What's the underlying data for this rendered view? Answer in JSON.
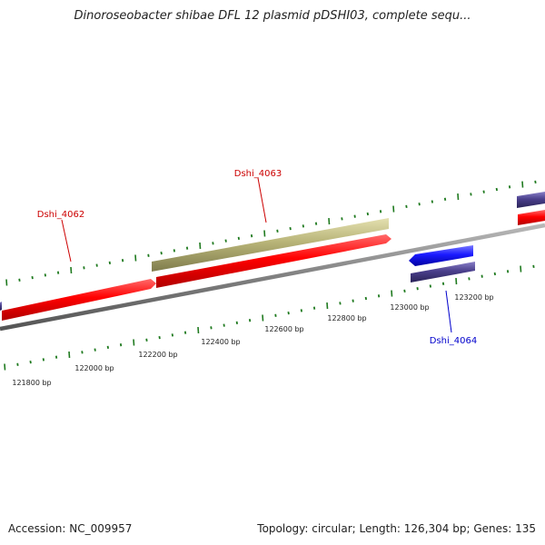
{
  "title": "Dinoroseobacter shibae DFL 12 plasmid pDSHI03, complete sequ...",
  "footer": {
    "accession": "Accession: NC_009957",
    "topology": "Topology: circular; Length: 126,304 bp; Genes: 135"
  },
  "ticks": [
    {
      "label": "121800 bp"
    },
    {
      "label": "122000 bp"
    },
    {
      "label": "122200 bp"
    },
    {
      "label": "122400 bp"
    },
    {
      "label": "122600 bp"
    },
    {
      "label": "122800 bp"
    },
    {
      "label": "123000 bp"
    },
    {
      "label": "123200 bp"
    }
  ],
  "genes": [
    {
      "name": "Dshi_4062",
      "label_color": "#cc0000"
    },
    {
      "name": "Dshi_4063",
      "label_color": "#cc0000"
    },
    {
      "name": "Dshi_4064",
      "label_color": "#0000cc"
    }
  ],
  "colors": {
    "cds_forward": "#ff0000",
    "cds_reverse": "#1a1aff",
    "gene_forward": "#b8b478",
    "gene_reverse": "#4a3f8c",
    "backbone": "#808080",
    "tick": "#1f7a1f"
  }
}
